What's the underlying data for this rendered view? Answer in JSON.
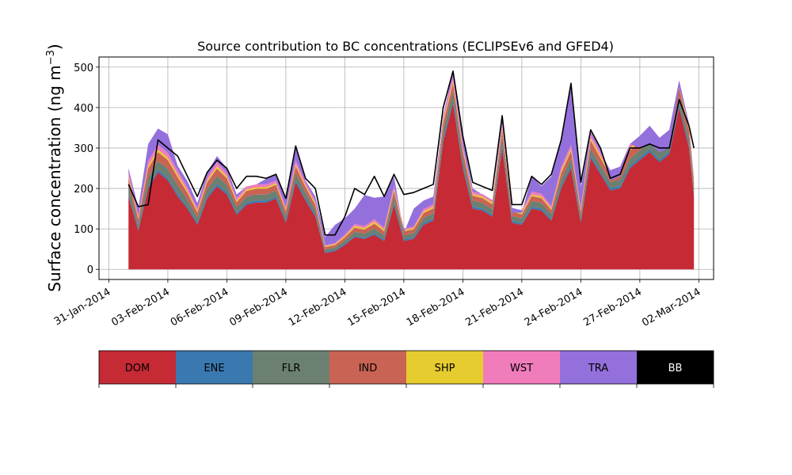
{
  "chart_data": {
    "type": "area",
    "stacked": true,
    "title": "Source contribution to BC concentrations (ECLIPSEv6 and GFED4)",
    "ylabel_main": "Surface concentration (ng m",
    "ylabel_sup": "−3",
    "ylabel_close": ")",
    "xlabel": "",
    "ylim": [
      -25,
      525
    ],
    "xlim": [
      "2014-01-30T12:00",
      "2014-03-02T18:00"
    ],
    "yticks": [
      0,
      100,
      200,
      300,
      400,
      500
    ],
    "xticks": [
      {
        "date": "2014-01-31",
        "label": "31-Jan-2014"
      },
      {
        "date": "2014-02-03",
        "label": "03-Feb-2014"
      },
      {
        "date": "2014-02-06",
        "label": "06-Feb-2014"
      },
      {
        "date": "2014-02-09",
        "label": "09-Feb-2014"
      },
      {
        "date": "2014-02-12",
        "label": "12-Feb-2014"
      },
      {
        "date": "2014-02-15",
        "label": "15-Feb-2014"
      },
      {
        "date": "2014-02-18",
        "label": "18-Feb-2014"
      },
      {
        "date": "2014-02-21",
        "label": "21-Feb-2014"
      },
      {
        "date": "2014-02-24",
        "label": "24-Feb-2014"
      },
      {
        "date": "2014-02-27",
        "label": "27-Feb-2014"
      },
      {
        "date": "2014-03-02",
        "label": "02-Mar-2014"
      }
    ],
    "grid": true,
    "legend_placement": "below",
    "x": [
      "2014-02-01",
      "2014-02-01T12:00",
      "2014-02-02",
      "2014-02-02T12:00",
      "2014-02-03",
      "2014-02-03T12:00",
      "2014-02-04",
      "2014-02-04T12:00",
      "2014-02-05",
      "2014-02-05T12:00",
      "2014-02-06",
      "2014-02-06T12:00",
      "2014-02-07",
      "2014-02-07T12:00",
      "2014-02-08",
      "2014-02-08T12:00",
      "2014-02-09",
      "2014-02-09T12:00",
      "2014-02-10",
      "2014-02-10T12:00",
      "2014-02-11",
      "2014-02-11T12:00",
      "2014-02-12",
      "2014-02-12T12:00",
      "2014-02-13",
      "2014-02-13T12:00",
      "2014-02-14",
      "2014-02-14T12:00",
      "2014-02-15",
      "2014-02-15T12:00",
      "2014-02-16",
      "2014-02-16T12:00",
      "2014-02-17",
      "2014-02-17T12:00",
      "2014-02-18",
      "2014-02-18T12:00",
      "2014-02-19",
      "2014-02-19T12:00",
      "2014-02-20",
      "2014-02-20T12:00",
      "2014-02-21",
      "2014-02-21T12:00",
      "2014-02-22",
      "2014-02-22T12:00",
      "2014-02-23",
      "2014-02-23T12:00",
      "2014-02-24",
      "2014-02-24T12:00",
      "2014-02-25",
      "2014-02-25T12:00",
      "2014-02-26",
      "2014-02-26T12:00",
      "2014-02-27",
      "2014-02-27T12:00",
      "2014-02-28",
      "2014-02-28T12:00",
      "2014-03-01",
      "2014-03-01T12:00",
      "2014-03-01T18:00"
    ],
    "series": [
      {
        "name": "DOM",
        "color": "#c52a35",
        "values": [
          180,
          95,
          200,
          240,
          220,
          180,
          150,
          110,
          175,
          205,
          185,
          135,
          160,
          165,
          165,
          175,
          115,
          215,
          170,
          130,
          40,
          45,
          60,
          80,
          75,
          85,
          70,
          160,
          70,
          75,
          110,
          120,
          315,
          410,
          250,
          150,
          145,
          130,
          300,
          115,
          110,
          150,
          145,
          120,
          200,
          250,
          115,
          275,
          235,
          195,
          200,
          250,
          270,
          290,
          265,
          285,
          400,
          300,
          180
        ]
      },
      {
        "name": "ENE",
        "color": "#3a78b0",
        "values": [
          6,
          5,
          6,
          6,
          6,
          6,
          5,
          5,
          6,
          6,
          6,
          5,
          5,
          5,
          5,
          5,
          5,
          6,
          5,
          5,
          3,
          3,
          3,
          3,
          3,
          4,
          4,
          5,
          4,
          4,
          5,
          5,
          8,
          8,
          6,
          5,
          5,
          5,
          7,
          5,
          4,
          5,
          5,
          5,
          6,
          6,
          5,
          6,
          6,
          6,
          6,
          6,
          6,
          6,
          6,
          6,
          7,
          6,
          5
        ]
      },
      {
        "name": "FLR",
        "color": "#6b8070",
        "values": [
          22,
          12,
          22,
          22,
          22,
          22,
          18,
          14,
          18,
          20,
          18,
          14,
          15,
          15,
          15,
          15,
          12,
          18,
          15,
          12,
          6,
          6,
          8,
          10,
          10,
          12,
          10,
          15,
          10,
          10,
          12,
          14,
          20,
          22,
          20,
          15,
          14,
          14,
          20,
          12,
          12,
          14,
          14,
          12,
          16,
          18,
          12,
          18,
          16,
          15,
          16,
          18,
          18,
          20,
          18,
          18,
          20,
          18,
          14
        ]
      },
      {
        "name": "IND",
        "color": "#c96354",
        "values": [
          18,
          12,
          22,
          22,
          22,
          20,
          16,
          12,
          16,
          18,
          16,
          12,
          14,
          14,
          14,
          14,
          12,
          16,
          14,
          12,
          6,
          6,
          8,
          10,
          10,
          12,
          10,
          14,
          10,
          10,
          12,
          12,
          18,
          20,
          16,
          12,
          12,
          12,
          18,
          10,
          10,
          12,
          12,
          10,
          16,
          18,
          10,
          20,
          18,
          16,
          18,
          20,
          20,
          22,
          20,
          20,
          22,
          20,
          15
        ]
      },
      {
        "name": "SHP",
        "color": "#e6cc2e",
        "values": [
          5,
          3,
          6,
          6,
          6,
          6,
          5,
          4,
          5,
          6,
          5,
          4,
          4,
          4,
          4,
          4,
          4,
          5,
          4,
          4,
          2,
          2,
          3,
          4,
          4,
          5,
          4,
          5,
          3,
          3,
          4,
          4,
          6,
          6,
          5,
          4,
          4,
          4,
          6,
          4,
          4,
          4,
          4,
          4,
          6,
          6,
          4,
          6,
          5,
          5,
          5,
          6,
          6,
          6,
          6,
          6,
          6,
          6,
          5
        ]
      },
      {
        "name": "WST",
        "color": "#f07cbc",
        "values": [
          10,
          6,
          12,
          12,
          12,
          10,
          8,
          6,
          8,
          10,
          8,
          6,
          7,
          7,
          7,
          7,
          6,
          9,
          7,
          6,
          3,
          3,
          4,
          5,
          5,
          6,
          5,
          7,
          4,
          4,
          6,
          6,
          10,
          12,
          8,
          6,
          6,
          6,
          10,
          6,
          6,
          7,
          7,
          6,
          9,
          10,
          6,
          10,
          9,
          8,
          9,
          10,
          10,
          11,
          10,
          10,
          12,
          10,
          7
        ]
      },
      {
        "name": "TRA",
        "color": "#9470dc",
        "values": [
          9,
          18,
          42,
          40,
          46,
          12,
          16,
          13,
          12,
          15,
          12,
          9,
          0,
          0,
          14,
          14,
          16,
          36,
          5,
          11,
          20,
          45,
          40,
          38,
          77,
          53,
          77,
          24,
          -11,
          44,
          21,
          19,
          3,
          15,
          25,
          8,
          -1,
          -1,
          11,
          -12,
          -6,
          38,
          19,
          73,
          68,
          152,
          50,
          5,
          9,
          -25,
          -24,
          0,
          -30,
          -45,
          -35,
          -45,
          -17,
          -5,
          -3
        ]
      },
      {
        "name": "BB",
        "color": "#000000",
        "values": [
          0,
          0,
          0,
          0,
          0,
          0,
          0,
          0,
          0,
          0,
          0,
          0,
          0,
          0,
          0,
          0,
          0,
          0,
          0,
          0,
          0,
          0,
          0,
          0,
          0,
          0,
          0,
          0,
          0,
          0,
          0,
          0,
          0,
          0,
          0,
          0,
          0,
          0,
          0,
          0,
          0,
          0,
          0,
          0,
          0,
          0,
          0,
          0,
          0,
          0,
          0,
          0,
          0,
          0,
          0,
          0,
          0,
          0,
          0
        ]
      }
    ],
    "total_line": {
      "name": "Total",
      "color": "#000000",
      "values": [
        210,
        155,
        160,
        320,
        300,
        280,
        230,
        180,
        240,
        270,
        250,
        200,
        230,
        230,
        225,
        235,
        175,
        305,
        225,
        200,
        85,
        85,
        130,
        200,
        185,
        230,
        180,
        235,
        185,
        190,
        200,
        210,
        400,
        490,
        330,
        215,
        205,
        195,
        380,
        160,
        160,
        230,
        210,
        235,
        320,
        460,
        215,
        345,
        300,
        225,
        235,
        300,
        300,
        310,
        300,
        300,
        420,
        355,
        300
      ]
    },
    "legend": [
      {
        "label": "DOM",
        "color": "#c52a35",
        "text_color": "#000000"
      },
      {
        "label": "ENE",
        "color": "#3a78b0",
        "text_color": "#000000"
      },
      {
        "label": "FLR",
        "color": "#6b8070",
        "text_color": "#000000"
      },
      {
        "label": "IND",
        "color": "#c96354",
        "text_color": "#000000"
      },
      {
        "label": "SHP",
        "color": "#e6cc2e",
        "text_color": "#000000"
      },
      {
        "label": "WST",
        "color": "#f07cbc",
        "text_color": "#000000"
      },
      {
        "label": "TRA",
        "color": "#9470dc",
        "text_color": "#000000"
      },
      {
        "label": "BB",
        "color": "#000000",
        "text_color": "#ffffff"
      }
    ]
  }
}
